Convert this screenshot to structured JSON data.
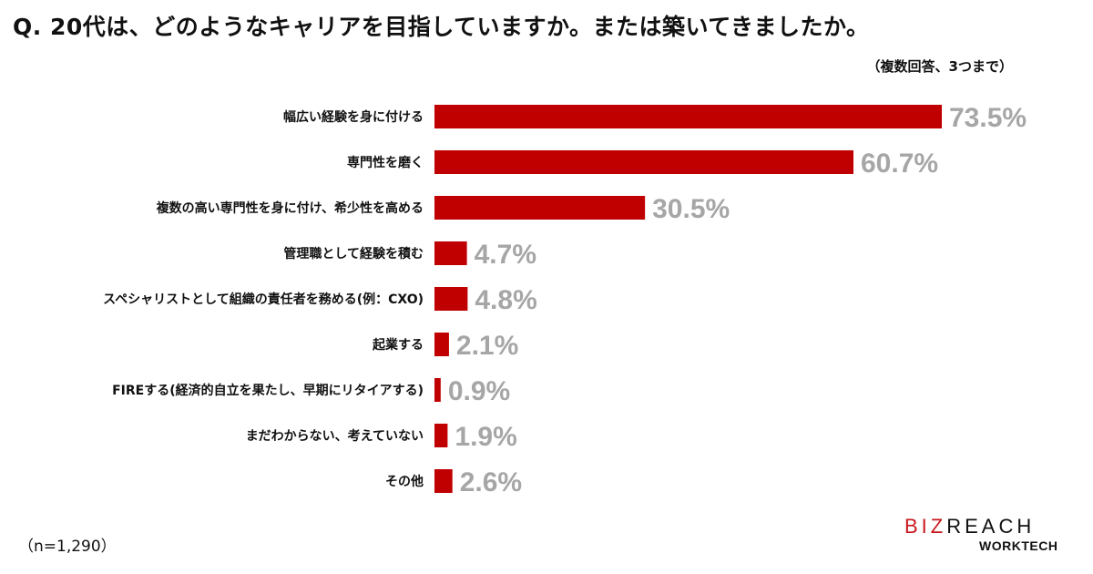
{
  "chart_data": {
    "type": "bar",
    "orientation": "horizontal",
    "title": "Q. 20代は、どのようなキャリアを目指していますか。または築いてきましたか。",
    "subtitle": "（複数回答、3つまで）",
    "categories": [
      "幅広い経験を身に付ける",
      "専門性を磨く",
      "複数の高い専門性を身に付け、希少性を高める",
      "管理職として経験を積む",
      "スペシャリストとして組織の責任者を務める(例：CXO)",
      "起業する",
      "FIREする(経済的自立を果たし、早期にリタイアする)",
      "まだわからない、考えていない",
      "その他"
    ],
    "values": [
      73.5,
      60.7,
      30.5,
      4.7,
      4.8,
      2.1,
      0.9,
      1.9,
      2.6
    ],
    "value_labels": [
      "73.5%",
      "60.7%",
      "30.5%",
      "4.7%",
      "4.8%",
      "2.1%",
      "0.9%",
      "1.9%",
      "2.6%"
    ],
    "unit": "%",
    "grid": false,
    "bar_color": "#c00000",
    "label_color": "#a6a6a6",
    "note": "（n=1,290）"
  },
  "logo": {
    "main_red": "BIZ",
    "main_dark": "REACH",
    "sub": "WORKTECH"
  }
}
